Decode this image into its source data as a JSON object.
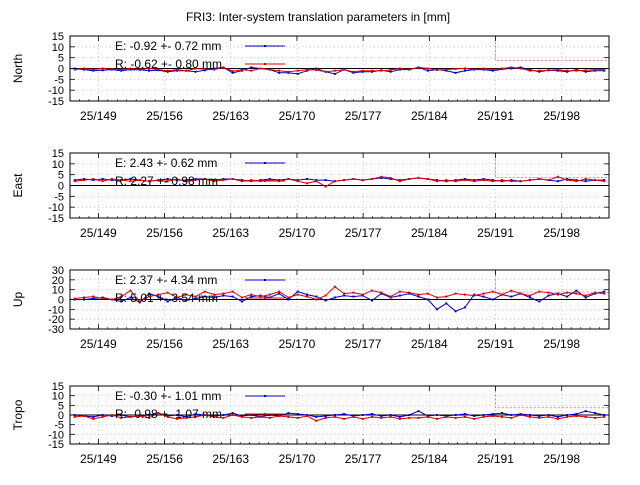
{
  "chart_data": {
    "title": "FRI3: Inter-system translation parameters in [mm]",
    "x_ticks": [
      "25/149",
      "25/156",
      "25/163",
      "25/170",
      "25/177",
      "25/184",
      "25/191",
      "25/198"
    ],
    "x_tick_days": [
      149,
      156,
      163,
      170,
      177,
      184,
      191,
      198
    ],
    "x_range_days": [
      146,
      203
    ],
    "highlight_start_day": 191,
    "grid": true,
    "legend_position": "top-left",
    "series_colors": {
      "E": "#0000cc",
      "R": "#dd0000"
    },
    "panels": [
      {
        "type": "line",
        "ylabel": "North",
        "ylim": [
          -15,
          15
        ],
        "yticks": [
          15,
          10,
          5,
          0,
          -5,
          -10,
          -15
        ],
        "legend": [
          {
            "label": "E:  -0.92 +- 0.72 mm",
            "color": "#0000cc"
          },
          {
            "label": "R:  -0.62 +- 0.80 mm",
            "color": "#dd0000"
          }
        ],
        "series": [
          {
            "name": "E",
            "values": [
              0,
              -0.5,
              -1,
              -0.8,
              -0.5,
              -1,
              -0.5,
              -0.6,
              -1,
              -0.8,
              -1.5,
              -1,
              -1,
              -1.5,
              -0.8,
              0,
              0.5,
              -2,
              -1,
              0.5,
              0,
              -0.5,
              -2,
              -2,
              -2.5,
              -1,
              0,
              -1.5,
              -2.5,
              -0.5,
              -2,
              -1.5,
              -1.5,
              -0.8,
              -1.5,
              -0.5,
              -0.5,
              0.5,
              -1,
              -0.5,
              -1,
              -2,
              -1,
              -0.5,
              -0.5,
              -1,
              -0.3,
              0,
              0.5,
              -0.5,
              -1.5,
              -0.8,
              -1,
              -1.5,
              -0.5,
              -1.5,
              -1,
              -1
            ]
          },
          {
            "name": "R",
            "values": [
              -0.5,
              0,
              -0.5,
              0,
              -0.3,
              -0.5,
              0,
              -0.5,
              0,
              -0.5,
              -1,
              -0.5,
              -1,
              0,
              -0.3,
              -0.5,
              0.5,
              -1.2,
              -0.5,
              -1,
              0,
              -0.5,
              -1,
              -1.5,
              -1,
              -0.5,
              -0.7,
              -1.5,
              -1,
              -0.5,
              -1.5,
              -1,
              -1,
              -1,
              -0.7,
              0,
              -0.5,
              0.5,
              0,
              -0.7,
              -0.5,
              -0.2,
              0,
              -0.5,
              0,
              -0.5,
              0,
              0.5,
              0,
              -1,
              -1,
              -0.8,
              -0.5,
              -1,
              -1,
              -0.8,
              -0.5,
              -0.5
            ]
          }
        ]
      },
      {
        "type": "line",
        "ylabel": "East",
        "ylim": [
          -15,
          15
        ],
        "yticks": [
          15,
          10,
          5,
          0,
          -5,
          -10,
          -15
        ],
        "legend": [
          {
            "label": "E:   2.43 +- 0.62 mm",
            "color": "#0000cc"
          },
          {
            "label": "R:   2.27 +- 0.98 mm",
            "color": "#dd0000"
          }
        ],
        "series": [
          {
            "name": "E",
            "values": [
              2.5,
              3,
              2.5,
              3,
              2.5,
              2.5,
              3,
              2.5,
              2,
              2.5,
              3,
              2.5,
              2.5,
              3,
              3,
              2.5,
              3,
              3,
              2.5,
              2,
              2.5,
              3,
              2.5,
              3,
              2.5,
              3,
              2.5,
              2.5,
              2,
              2.5,
              3,
              2.5,
              3,
              3.5,
              3,
              2.5,
              3,
              3.5,
              3,
              2.5,
              2,
              2.5,
              3,
              2.5,
              3,
              2.5,
              2,
              2.5,
              2,
              2.5,
              3,
              2.5,
              2,
              3,
              2.5,
              2,
              2.5,
              2.5
            ]
          },
          {
            "name": "R",
            "values": [
              2,
              2.5,
              3,
              2,
              3,
              2.5,
              2,
              2.5,
              2,
              2.5,
              2,
              3,
              2,
              2.5,
              3,
              2,
              2.5,
              3,
              2,
              2.5,
              2,
              2.5,
              2,
              3,
              2,
              1,
              2,
              -0.5,
              2,
              2.5,
              3,
              2.5,
              3,
              4,
              3.5,
              2,
              3,
              3.5,
              3,
              2,
              2.5,
              2,
              2.5,
              2,
              2.5,
              2,
              2.5,
              2,
              2,
              2.5,
              3,
              2.5,
              4,
              2.5,
              2,
              3,
              2.5,
              2
            ]
          }
        ]
      },
      {
        "type": "line",
        "ylabel": "Up",
        "ylim": [
          -30,
          30
        ],
        "yticks": [
          30,
          20,
          10,
          0,
          -10,
          -20,
          -30
        ],
        "legend": [
          {
            "label": "E:   2.37 +- 4.34 mm",
            "color": "#0000cc"
          },
          {
            "label": "R:   5.01 +- 3.54 mm",
            "color": "#dd0000"
          }
        ],
        "series": [
          {
            "name": "E",
            "values": [
              0,
              0,
              1,
              2,
              0,
              -2,
              2,
              -3,
              6,
              3,
              -2,
              2,
              -1,
              1,
              3,
              2,
              4,
              3,
              -2,
              3,
              4,
              2,
              6,
              0,
              8,
              5,
              3,
              -1,
              2,
              4,
              3,
              4,
              -1,
              6,
              2,
              4,
              6,
              3,
              0,
              -10,
              -4,
              -12,
              -8,
              5,
              3,
              0,
              5,
              3,
              6,
              2,
              -2,
              4,
              6,
              3,
              9,
              2,
              6,
              8
            ]
          },
          {
            "name": "R",
            "values": [
              1,
              2,
              3,
              1,
              0,
              3,
              9,
              -2,
              3,
              5,
              7,
              2,
              5,
              3,
              8,
              5,
              6,
              8,
              2,
              5,
              3,
              5,
              8,
              2,
              5,
              3,
              0,
              4,
              13,
              6,
              7,
              5,
              9,
              7,
              3,
              8,
              7,
              5,
              6,
              2,
              3,
              6,
              5,
              4,
              6,
              8,
              5,
              9,
              6,
              4,
              8,
              7,
              5,
              7,
              6,
              4,
              7,
              6
            ]
          }
        ]
      },
      {
        "type": "line",
        "ylabel": "Tropo",
        "ylim": [
          -15,
          15
        ],
        "yticks": [
          15,
          10,
          5,
          0,
          -5,
          -10,
          -15
        ],
        "legend": [
          {
            "label": "E:  -0.30 +- 1.01 mm",
            "color": "#0000cc"
          },
          {
            "label": "R:  -0.98 +- 1.07 mm",
            "color": "#dd0000"
          }
        ],
        "series": [
          {
            "name": "E",
            "values": [
              0,
              -0.5,
              -1,
              0,
              -0.5,
              0,
              -1,
              -0.5,
              0,
              1,
              -0.5,
              0,
              -1,
              0.5,
              0,
              -0.5,
              0,
              1,
              -0.5,
              0,
              -1,
              0,
              -0.5,
              1,
              0.5,
              0,
              -1,
              -0.5,
              0,
              0.5,
              -0.5,
              0,
              0.5,
              -0.5,
              0,
              -1,
              0,
              2,
              -0.5,
              0,
              -0.5,
              0,
              0.5,
              -0.5,
              0,
              0.5,
              1,
              0,
              0.5,
              0,
              -0.5,
              0,
              -1,
              0,
              0.5,
              2,
              1,
              0
            ]
          },
          {
            "name": "R",
            "values": [
              -1,
              -0.5,
              -2,
              -1,
              0,
              -1.5,
              -1,
              -0.5,
              -1.5,
              1,
              -1,
              -2,
              -1.5,
              -1,
              0,
              -1,
              -1.5,
              0,
              -1,
              -1.5,
              -1,
              -1.5,
              -0.5,
              -1,
              -1.5,
              -0.5,
              -3,
              -1.5,
              -1,
              -2,
              -1,
              -2,
              -1,
              -1.5,
              -1,
              -2,
              -1.5,
              -1.5,
              -1,
              -2,
              -1,
              -1.5,
              -1,
              -2,
              -1,
              -0.5,
              -1,
              -1.5,
              0,
              -1,
              -1.5,
              -1,
              -2,
              -1,
              -0.5,
              -1,
              -1.5,
              -1
            ]
          }
        ]
      }
    ]
  }
}
